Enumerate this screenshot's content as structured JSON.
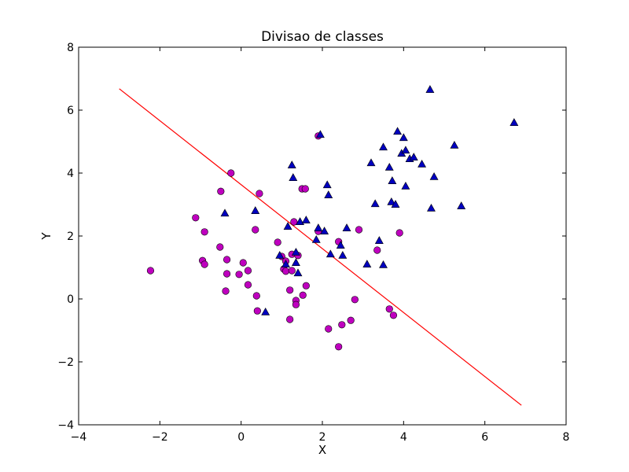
{
  "chart_data": {
    "type": "scatter",
    "title": "Divisao de classes",
    "xlabel": "X",
    "ylabel": "Y",
    "xlim": [
      -4,
      8
    ],
    "ylim": [
      -4,
      8
    ],
    "xticks": [
      "−4",
      "−2",
      "0",
      "2",
      "4",
      "6",
      "8"
    ],
    "yticks": [
      "−4",
      "−2",
      "0",
      "2",
      "4",
      "6",
      "8"
    ],
    "grid": false,
    "series": [
      {
        "marker": "circle",
        "color": "#bf00bf",
        "points": [
          [
            -2.23,
            0.9
          ],
          [
            -1.12,
            2.58
          ],
          [
            -0.9,
            2.13
          ],
          [
            -0.95,
            1.22
          ],
          [
            -0.9,
            1.1
          ],
          [
            -0.5,
            3.42
          ],
          [
            -0.52,
            1.65
          ],
          [
            -0.35,
            1.25
          ],
          [
            -0.35,
            0.8
          ],
          [
            -0.38,
            0.25
          ],
          [
            -0.25,
            4.0
          ],
          [
            -0.05,
            0.78
          ],
          [
            0.05,
            1.15
          ],
          [
            0.17,
            0.9
          ],
          [
            0.17,
            0.45
          ],
          [
            0.35,
            2.2
          ],
          [
            0.38,
            0.1
          ],
          [
            0.4,
            -0.38
          ],
          [
            0.45,
            3.35
          ],
          [
            0.9,
            1.8
          ],
          [
            1.0,
            1.35
          ],
          [
            1.05,
            0.95
          ],
          [
            1.1,
            1.2
          ],
          [
            1.1,
            0.88
          ],
          [
            1.2,
            0.28
          ],
          [
            1.2,
            -0.65
          ],
          [
            1.25,
            1.42
          ],
          [
            1.25,
            0.9
          ],
          [
            1.3,
            2.45
          ],
          [
            1.35,
            -0.05
          ],
          [
            1.35,
            -0.18
          ],
          [
            1.4,
            1.38
          ],
          [
            1.5,
            3.5
          ],
          [
            1.52,
            0.12
          ],
          [
            1.58,
            3.5
          ],
          [
            1.6,
            0.42
          ],
          [
            1.9,
            5.18
          ],
          [
            1.9,
            2.15
          ],
          [
            2.15,
            -0.95
          ],
          [
            2.4,
            1.82
          ],
          [
            2.4,
            -1.52
          ],
          [
            2.48,
            -0.82
          ],
          [
            2.7,
            -0.68
          ],
          [
            2.8,
            -0.02
          ],
          [
            2.9,
            2.2
          ],
          [
            3.35,
            1.55
          ],
          [
            3.65,
            -0.32
          ],
          [
            3.75,
            -0.52
          ],
          [
            3.9,
            2.1
          ]
        ]
      },
      {
        "marker": "triangle",
        "color": "#0000bf",
        "points": [
          [
            -0.4,
            2.72
          ],
          [
            0.35,
            2.8
          ],
          [
            0.6,
            -0.42
          ],
          [
            0.95,
            1.38
          ],
          [
            1.1,
            1.1
          ],
          [
            1.15,
            2.3
          ],
          [
            1.25,
            4.25
          ],
          [
            1.28,
            3.85
          ],
          [
            1.35,
            1.48
          ],
          [
            1.35,
            1.15
          ],
          [
            1.4,
            0.82
          ],
          [
            1.45,
            2.45
          ],
          [
            1.6,
            2.5
          ],
          [
            1.85,
            1.88
          ],
          [
            1.9,
            2.25
          ],
          [
            1.95,
            5.22
          ],
          [
            2.05,
            2.15
          ],
          [
            2.12,
            3.62
          ],
          [
            2.15,
            3.3
          ],
          [
            2.2,
            1.42
          ],
          [
            2.45,
            1.7
          ],
          [
            2.5,
            1.38
          ],
          [
            2.6,
            2.25
          ],
          [
            3.1,
            1.1
          ],
          [
            3.2,
            4.32
          ],
          [
            3.3,
            3.02
          ],
          [
            3.4,
            1.85
          ],
          [
            3.5,
            1.08
          ],
          [
            3.5,
            4.82
          ],
          [
            3.65,
            4.18
          ],
          [
            3.7,
            3.08
          ],
          [
            3.72,
            3.75
          ],
          [
            3.8,
            3.0
          ],
          [
            3.85,
            5.32
          ],
          [
            3.95,
            4.62
          ],
          [
            4.0,
            5.12
          ],
          [
            4.05,
            4.72
          ],
          [
            4.05,
            3.58
          ],
          [
            4.15,
            4.45
          ],
          [
            4.25,
            4.5
          ],
          [
            4.45,
            4.28
          ],
          [
            4.65,
            6.65
          ],
          [
            4.68,
            2.88
          ],
          [
            4.75,
            3.88
          ],
          [
            5.25,
            4.88
          ],
          [
            5.42,
            2.95
          ],
          [
            6.72,
            5.6
          ]
        ]
      }
    ],
    "line": {
      "color": "#ff0000",
      "points": [
        [
          -3.0,
          6.68
        ],
        [
          6.9,
          -3.38
        ]
      ]
    }
  }
}
